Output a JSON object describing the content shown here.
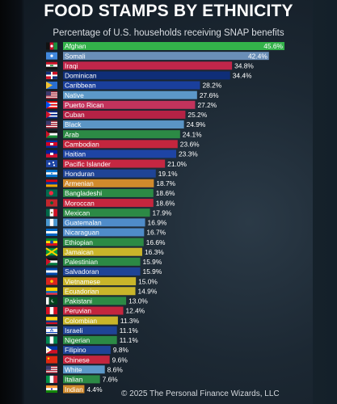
{
  "title": "FOOD STAMPS BY ETHNICITY",
  "subtitle": "Percentage of U.S. households receiving SNAP benefits",
  "credit": "© 2025 The Personal Finance Wizards, LLC",
  "chart_data": {
    "type": "bar",
    "orientation": "horizontal",
    "title": "FOOD STAMPS BY ETHNICITY",
    "subtitle": "Percentage of U.S. households receiving SNAP benefits",
    "xlabel": "",
    "ylabel": "",
    "value_suffix": "%",
    "xlim": [
      0,
      45.6
    ],
    "grid": false,
    "legend": "none",
    "categories": [
      "Afghan",
      "Somali",
      "Iraqi",
      "Dominican",
      "Caribbean",
      "Native",
      "Puerto Rican",
      "Cuban",
      "Black",
      "Arab",
      "Cambodian",
      "Haitian",
      "Pacific Islander",
      "Honduran",
      "Armenian",
      "Bangladeshi",
      "Moroccan",
      "Mexican",
      "Guatemalan",
      "Nicaraguan",
      "Ethiopian",
      "Jamaican",
      "Palestinian",
      "Salvadoran",
      "Vietnamese",
      "Ecuadorian",
      "Pakistani",
      "Peruvian",
      "Colombian",
      "Israeli",
      "Nigerian",
      "Filipino",
      "Chinese",
      "White",
      "Italian",
      "Indian"
    ],
    "values": [
      45.6,
      42.4,
      34.8,
      34.4,
      28.2,
      27.6,
      27.2,
      25.2,
      24.9,
      24.1,
      23.6,
      23.3,
      21.0,
      19.1,
      18.7,
      18.6,
      18.6,
      17.9,
      16.9,
      16.7,
      16.6,
      16.3,
      15.9,
      15.9,
      15.0,
      14.9,
      13.0,
      12.4,
      11.3,
      11.1,
      11.1,
      9.8,
      9.6,
      8.6,
      7.6,
      4.4
    ],
    "bar_colors": [
      "#33b24a",
      "#6a8fb8",
      "#c0264a",
      "#0f2e78",
      "#1a3f9c",
      "#5c98c8",
      "#c2335c",
      "#b52245",
      "#5b95c5",
      "#2c8a45",
      "#c4263e",
      "#1e44a4",
      "#c52742",
      "#1f4496",
      "#d08a2c",
      "#2c8a45",
      "#c4263e",
      "#2c8a45",
      "#4f8cc9",
      "#4f8cc9",
      "#2c8a45",
      "#c9b52a",
      "#2c8a45",
      "#1f4496",
      "#c9b52a",
      "#c9b52a",
      "#2c8a45",
      "#c4263e",
      "#c9b52a",
      "#1f4496",
      "#2c8a45",
      "#1f4496",
      "#c4263e",
      "#5c98c8",
      "#2c8a45",
      "#d08a2c"
    ],
    "flags": [
      "af",
      "so",
      "iq",
      "do",
      "cb",
      "us",
      "pr",
      "cu",
      "us",
      "ar",
      "kh",
      "ht",
      "pi",
      "hn",
      "am",
      "bd",
      "ma",
      "mx",
      "gt",
      "ni",
      "et",
      "jm",
      "ps",
      "sv",
      "vn",
      "ec",
      "pk",
      "pe",
      "co",
      "il",
      "ng",
      "ph",
      "cn",
      "us",
      "it",
      "in"
    ]
  }
}
